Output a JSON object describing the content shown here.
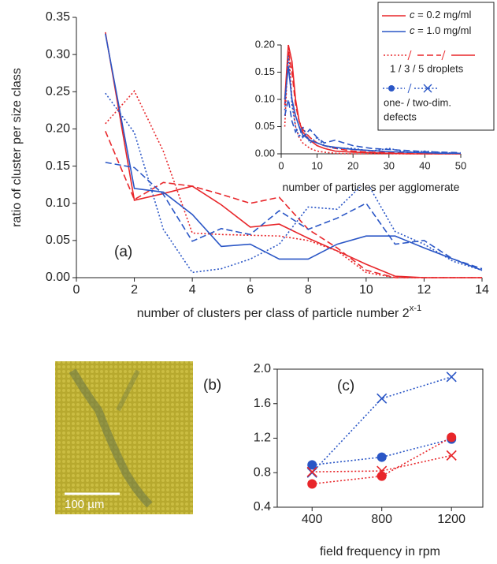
{
  "chart_data": [
    {
      "type": "line",
      "panel_label": "(a)",
      "y_label": "ratio of cluster per size class",
      "x_label": "number of clusters per class of particle number 2",
      "x_label_sup": "x-1",
      "x": [
        1,
        2,
        3,
        4,
        5,
        6,
        7,
        8,
        9,
        10,
        11,
        12,
        13,
        14
      ],
      "xlim": [
        0,
        14
      ],
      "xticks": [
        0,
        2,
        4,
        6,
        8,
        10,
        12,
        14
      ],
      "ylim": [
        0,
        0.35
      ],
      "yticks": [
        {
          "value": 0,
          "label": "0.00"
        },
        0.05,
        {
          "value": 0.1,
          "label": "0.10"
        },
        0.15,
        {
          "value": 0.2,
          "label": "0.20"
        },
        0.25,
        {
          "value": 0.3,
          "label": "0.30"
        },
        0.35
      ],
      "series": [
        {
          "color": "#e8262a",
          "dash": "dotted",
          "values": [
            0.207,
            0.251,
            0.17,
            0.06,
            0.058,
            0.057,
            0.056,
            0.05,
            0.036,
            0.007,
            0,
            0,
            0,
            0
          ]
        },
        {
          "color": "#e8262a",
          "dash": "dashed",
          "values": [
            0.197,
            0.105,
            0.128,
            0.123,
            0.112,
            0.1,
            0.108,
            0.065,
            0.04,
            0.01,
            0,
            0,
            0,
            0
          ]
        },
        {
          "color": "#e8262a",
          "dash": "solid",
          "values": [
            0.33,
            0.104,
            0.113,
            0.123,
            0.098,
            0.068,
            0.072,
            0.053,
            0.036,
            0.018,
            0.002,
            0,
            0,
            0
          ]
        },
        {
          "color": "#2a56c6",
          "dash": "dotted",
          "values": [
            0.248,
            0.195,
            0.065,
            0.007,
            0.012,
            0.025,
            0.045,
            0.095,
            0.092,
            0.13,
            0.062,
            0.045,
            0.022,
            0.01
          ]
        },
        {
          "color": "#2a56c6",
          "dash": "dashed",
          "values": [
            0.155,
            0.148,
            0.112,
            0.049,
            0.066,
            0.058,
            0.09,
            0.065,
            0.08,
            0.1,
            0.045,
            0.05,
            0.025,
            0.012
          ]
        },
        {
          "color": "#2a56c6",
          "dash": "solid",
          "values": [
            0.328,
            0.12,
            0.115,
            0.085,
            0.042,
            0.045,
            0.025,
            0.025,
            0.045,
            0.056,
            0.056,
            0.04,
            0.025,
            0.01
          ]
        }
      ],
      "legend": {
        "entries": [
          {
            "label": "c = 0.2 mg/ml",
            "color": "#e8262a"
          },
          {
            "label": "c = 1.0 mg/ml",
            "color": "#2a56c6"
          }
        ],
        "droplets_label": "1 / 3 / 5 droplets",
        "defects_label_lines": [
          "one- / two-dim.",
          "defects"
        ]
      }
    },
    {
      "type": "line",
      "x_label": "number of particles per agglomerate",
      "x": [
        1,
        2,
        3,
        4,
        5,
        6,
        8,
        10,
        12,
        15,
        20,
        25,
        30,
        35,
        40,
        45,
        50
      ],
      "xlim": [
        0,
        50
      ],
      "xticks": [
        0,
        10,
        20,
        30,
        40,
        50
      ],
      "ylim": [
        0,
        0.2
      ],
      "yticks": [
        {
          "value": 0,
          "label": "0.00"
        },
        0.05,
        {
          "value": 0.1,
          "label": "0.10"
        },
        0.15,
        {
          "value": 0.2,
          "label": "0.20"
        }
      ],
      "series": [
        {
          "color": "#e8262a",
          "dash": "dotted",
          "values": [
            0.05,
            0.2,
            0.1,
            0.05,
            0.03,
            0.02,
            0.01,
            0.005,
            0.003,
            0.001,
            0,
            0,
            0,
            0,
            0,
            0,
            0
          ]
        },
        {
          "color": "#e8262a",
          "dash": "dashed",
          "values": [
            0.09,
            0.19,
            0.15,
            0.09,
            0.06,
            0.045,
            0.03,
            0.02,
            0.015,
            0.01,
            0.005,
            0.003,
            0.002,
            0.001,
            0,
            0,
            0
          ]
        },
        {
          "color": "#e8262a",
          "dash": "solid",
          "values": [
            0.1,
            0.2,
            0.17,
            0.1,
            0.06,
            0.04,
            0.025,
            0.015,
            0.01,
            0.005,
            0.003,
            0.002,
            0.001,
            0,
            0,
            0,
            0
          ]
        },
        {
          "color": "#2a56c6",
          "dash": "dotted",
          "values": [
            0.08,
            0.18,
            0.09,
            0.05,
            0.03,
            0.05,
            0.02,
            0.03,
            0.015,
            0.01,
            0.01,
            0.005,
            0.01,
            0.003,
            0.005,
            0.002,
            0.001
          ]
        },
        {
          "color": "#2a56c6",
          "dash": "dashed",
          "values": [
            0.07,
            0.1,
            0.06,
            0.04,
            0.05,
            0.03,
            0.045,
            0.03,
            0.02,
            0.025,
            0.015,
            0.01,
            0.008,
            0.006,
            0.004,
            0.003,
            0.002
          ]
        },
        {
          "color": "#2a56c6",
          "dash": "solid",
          "values": [
            0.1,
            0.16,
            0.1,
            0.07,
            0.05,
            0.035,
            0.025,
            0.02,
            0.015,
            0.012,
            0.008,
            0.006,
            0.004,
            0.003,
            0.002,
            0.001,
            0.001
          ]
        }
      ]
    },
    {
      "type": "line",
      "panel_label": "(c)",
      "x_label": "field frequency in rpm",
      "x": [
        400,
        800,
        1200
      ],
      "xlim": [
        200,
        1380
      ],
      "xticks": [
        400,
        800,
        1200
      ],
      "ylim": [
        0.4,
        2.0
      ],
      "yticks": [
        0.4,
        0.8,
        1.2,
        1.6,
        {
          "value": 2,
          "label": "2.0"
        }
      ],
      "series": [
        {
          "color": "#2a56c6",
          "dash": "dotted",
          "marker": "x",
          "values": [
            0.8,
            1.66,
            1.91
          ]
        },
        {
          "color": "#2a56c6",
          "dash": "dotted",
          "marker": "circle",
          "values": [
            0.89,
            0.98,
            1.19
          ]
        },
        {
          "color": "#e8262a",
          "dash": "dotted",
          "marker": "x",
          "values": [
            0.81,
            0.82,
            1.0
          ]
        },
        {
          "color": "#e8262a",
          "dash": "dotted",
          "marker": "circle",
          "values": [
            0.67,
            0.76,
            1.21
          ]
        }
      ]
    }
  ],
  "image": {
    "panel_label": "(b)",
    "scale_bar": "100 µm"
  }
}
